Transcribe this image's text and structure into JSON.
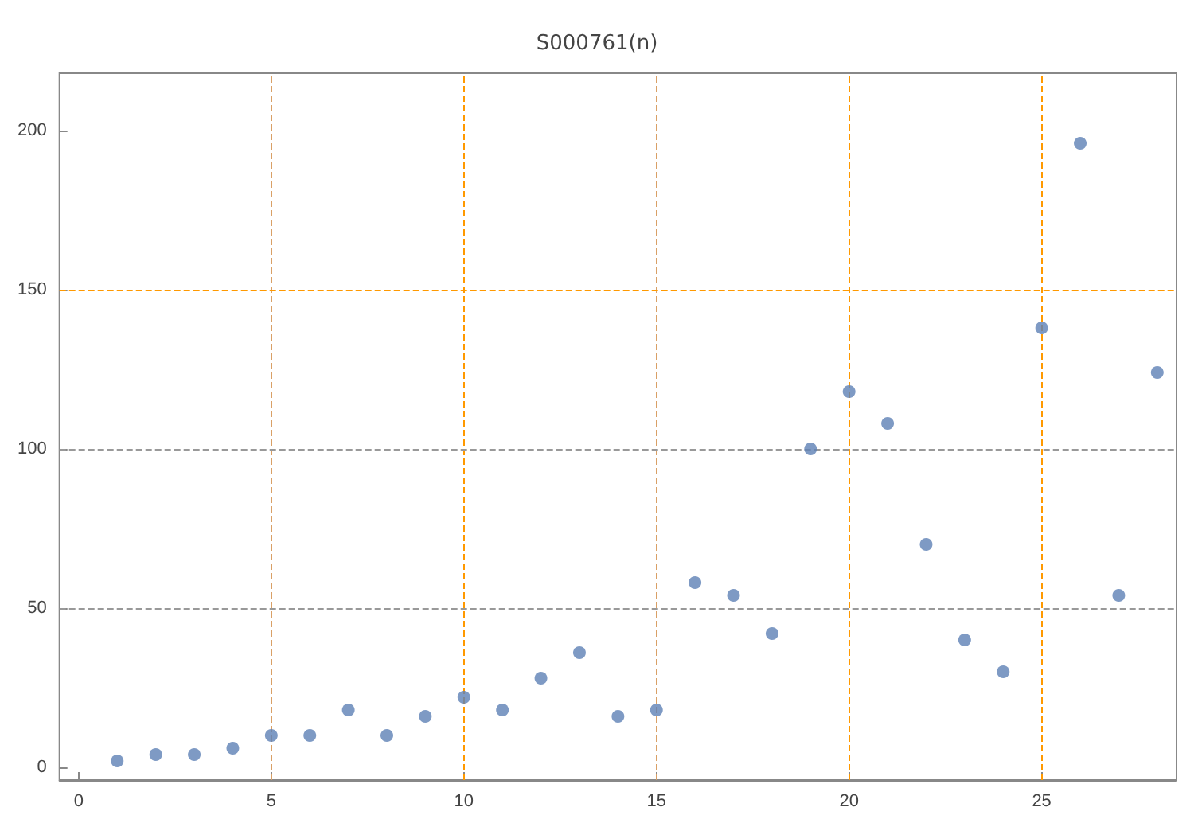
{
  "chart_data": {
    "type": "scatter",
    "title": "S000761(n)",
    "x": [
      1,
      2,
      3,
      4,
      5,
      6,
      7,
      8,
      9,
      10,
      11,
      12,
      13,
      14,
      15,
      16,
      17,
      18,
      19,
      20,
      21,
      22,
      23,
      24,
      25,
      26,
      27,
      28
    ],
    "values": [
      2,
      4,
      4,
      6,
      10,
      10,
      18,
      10,
      16,
      22,
      18,
      28,
      36,
      16,
      18,
      58,
      54,
      42,
      100,
      118,
      108,
      70,
      40,
      30,
      138,
      196,
      54,
      124
    ],
    "color": "#5e81b5",
    "marker": "circle",
    "xlim": [
      -0.5,
      28.5
    ],
    "ylim": [
      -4,
      218
    ],
    "xticks": [
      0,
      5,
      10,
      15,
      20,
      25
    ],
    "yticks": [
      0,
      50,
      100,
      150,
      200
    ],
    "ref_lines": [
      {
        "axis": "x",
        "value": 5,
        "color": "#d9a066",
        "line_style": "dashed"
      },
      {
        "axis": "x",
        "value": 10,
        "color": "#ff9900",
        "line_style": "dashed"
      },
      {
        "axis": "x",
        "value": 15,
        "color": "#d9a066",
        "line_style": "dashed"
      },
      {
        "axis": "x",
        "value": 20,
        "color": "#ff9900",
        "line_style": "dashed"
      },
      {
        "axis": "x",
        "value": 25,
        "color": "#ff9900",
        "line_style": "dashed"
      },
      {
        "axis": "y",
        "value": 50,
        "color": "#999999",
        "line_style": "dashed"
      },
      {
        "axis": "y",
        "value": 100,
        "color": "#999999",
        "line_style": "dashed"
      },
      {
        "axis": "y",
        "value": 150,
        "color": "#ff9900",
        "line_style": "dashed"
      }
    ]
  }
}
